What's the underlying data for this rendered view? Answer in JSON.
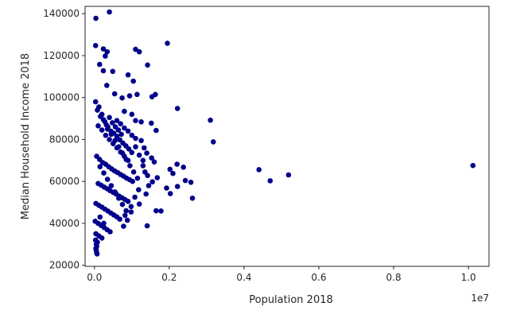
{
  "chart_data": {
    "type": "scatter",
    "xlabel": "Population 2018",
    "ylabel": "Median Household Income 2018",
    "x_offset_text": "1e7",
    "xlim": [
      -0.025,
      1.055
    ],
    "ylim": [
      19500,
      143500
    ],
    "x_tick_values": [
      0.0,
      0.2,
      0.4,
      0.6,
      0.8,
      1.0
    ],
    "x_tick_labels": [
      "0.0",
      "0.2",
      "0.4",
      "0.6",
      "0.8",
      "1.0"
    ],
    "y_tick_values": [
      20000,
      40000,
      60000,
      80000,
      100000,
      120000,
      140000
    ],
    "y_tick_labels": [
      "20000",
      "40000",
      "60000",
      "80000",
      "100000",
      "120000",
      "140000"
    ],
    "grid": false,
    "marker_color": "#00008b",
    "points": [
      [
        0.004,
        137800
      ],
      [
        0.04,
        140800
      ],
      [
        0.003,
        124800
      ],
      [
        0.024,
        123200
      ],
      [
        0.034,
        121800
      ],
      [
        0.029,
        119800
      ],
      [
        0.014,
        115800
      ],
      [
        0.024,
        112800
      ],
      [
        0.049,
        112500
      ],
      [
        0.11,
        123000
      ],
      [
        0.12,
        121800
      ],
      [
        0.142,
        115500
      ],
      [
        0.195,
        125900
      ],
      [
        0.09,
        110800
      ],
      [
        0.104,
        107800
      ],
      [
        0.033,
        105800
      ],
      [
        0.054,
        101800
      ],
      [
        0.074,
        99800
      ],
      [
        0.094,
        100800
      ],
      [
        0.114,
        101500
      ],
      [
        0.154,
        100400
      ],
      [
        0.163,
        101500
      ],
      [
        0.08,
        93400
      ],
      [
        0.1,
        92000
      ],
      [
        0.11,
        89000
      ],
      [
        0.125,
        88400
      ],
      [
        0.152,
        87800
      ],
      [
        0.165,
        84300
      ],
      [
        0.222,
        94800
      ],
      [
        0.31,
        89200
      ],
      [
        0.318,
        78900
      ],
      [
        0.11,
        80500
      ],
      [
        0.125,
        79500
      ],
      [
        0.133,
        76000
      ],
      [
        0.14,
        73500
      ],
      [
        0.153,
        71200
      ],
      [
        0.13,
        67500
      ],
      [
        0.142,
        62800
      ],
      [
        0.155,
        59800
      ],
      [
        0.16,
        69300
      ],
      [
        0.168,
        61800
      ],
      [
        0.202,
        65800
      ],
      [
        0.221,
        68200
      ],
      [
        0.238,
        66800
      ],
      [
        0.243,
        60400
      ],
      [
        0.258,
        59600
      ],
      [
        0.262,
        52000
      ],
      [
        0.21,
        63800
      ],
      [
        0.193,
        56800
      ],
      [
        0.203,
        54200
      ],
      [
        0.222,
        57600
      ],
      [
        0.44,
        65600
      ],
      [
        0.47,
        60300
      ],
      [
        0.519,
        63100
      ],
      [
        1.012,
        67600
      ],
      [
        0.165,
        46000
      ],
      [
        0.178,
        45900
      ],
      [
        0.141,
        38800
      ],
      [
        0.078,
        38600
      ],
      [
        0.098,
        45400
      ],
      [
        0.082,
        43800
      ],
      [
        0.12,
        49200
      ],
      [
        0.003,
        98000
      ],
      [
        0.012,
        95500
      ],
      [
        0.02,
        92000
      ],
      [
        0.028,
        88500
      ],
      [
        0.036,
        86000
      ],
      [
        0.044,
        84000
      ],
      [
        0.052,
        83000
      ],
      [
        0.06,
        81500
      ],
      [
        0.068,
        79800
      ],
      [
        0.076,
        78300
      ],
      [
        0.084,
        77000
      ],
      [
        0.092,
        75500
      ],
      [
        0.1,
        73800
      ],
      [
        0.006,
        72000
      ],
      [
        0.014,
        70500
      ],
      [
        0.022,
        69000
      ],
      [
        0.03,
        68200
      ],
      [
        0.038,
        67000
      ],
      [
        0.046,
        66000
      ],
      [
        0.054,
        65000
      ],
      [
        0.062,
        64200
      ],
      [
        0.07,
        63300
      ],
      [
        0.078,
        62500
      ],
      [
        0.086,
        61600
      ],
      [
        0.094,
        60800
      ],
      [
        0.102,
        60000
      ],
      [
        0.01,
        59000
      ],
      [
        0.018,
        58200
      ],
      [
        0.026,
        57300
      ],
      [
        0.034,
        56500
      ],
      [
        0.042,
        55600
      ],
      [
        0.05,
        54800
      ],
      [
        0.058,
        54000
      ],
      [
        0.066,
        53000
      ],
      [
        0.074,
        52200
      ],
      [
        0.082,
        51300
      ],
      [
        0.09,
        50500
      ],
      [
        0.004,
        49500
      ],
      [
        0.012,
        48600
      ],
      [
        0.02,
        47700
      ],
      [
        0.028,
        46800
      ],
      [
        0.036,
        45900
      ],
      [
        0.044,
        44900
      ],
      [
        0.052,
        44000
      ],
      [
        0.06,
        43100
      ],
      [
        0.068,
        42000
      ],
      [
        0.002,
        41000
      ],
      [
        0.01,
        40000
      ],
      [
        0.018,
        39000
      ],
      [
        0.026,
        38000
      ],
      [
        0.034,
        37000
      ],
      [
        0.042,
        36000
      ],
      [
        0.004,
        35000
      ],
      [
        0.012,
        34000
      ],
      [
        0.02,
        33000
      ],
      [
        0.003,
        32000
      ],
      [
        0.008,
        31000
      ],
      [
        0.005,
        30000
      ],
      [
        0.006,
        29000
      ],
      [
        0.004,
        28000
      ],
      [
        0.005,
        27000
      ],
      [
        0.006,
        26000
      ],
      [
        0.007,
        25400
      ],
      [
        0.01,
        86500
      ],
      [
        0.02,
        84500
      ],
      [
        0.03,
        82000
      ],
      [
        0.04,
        80000
      ],
      [
        0.05,
        78000
      ],
      [
        0.06,
        76000
      ],
      [
        0.07,
        74000
      ],
      [
        0.08,
        72000
      ],
      [
        0.09,
        70000
      ],
      [
        0.015,
        67000
      ],
      [
        0.025,
        64000
      ],
      [
        0.035,
        61000
      ],
      [
        0.045,
        58000
      ],
      [
        0.055,
        55000
      ],
      [
        0.065,
        52000
      ],
      [
        0.075,
        49000
      ],
      [
        0.085,
        46000
      ],
      [
        0.015,
        43000
      ],
      [
        0.025,
        40000
      ],
      [
        0.035,
        85000
      ],
      [
        0.045,
        82500
      ],
      [
        0.055,
        79500
      ],
      [
        0.065,
        76500
      ],
      [
        0.075,
        73500
      ],
      [
        0.085,
        70500
      ],
      [
        0.095,
        67500
      ],
      [
        0.105,
        64500
      ],
      [
        0.115,
        61500
      ],
      [
        0.008,
        94000
      ],
      [
        0.016,
        91000
      ],
      [
        0.024,
        89500
      ],
      [
        0.032,
        87000
      ],
      [
        0.04,
        90500
      ],
      [
        0.048,
        88000
      ],
      [
        0.056,
        86000
      ],
      [
        0.064,
        84500
      ],
      [
        0.072,
        82500
      ],
      [
        0.06,
        89000
      ],
      [
        0.07,
        87500
      ],
      [
        0.08,
        85500
      ],
      [
        0.09,
        84000
      ],
      [
        0.1,
        82000
      ],
      [
        0.11,
        76500
      ],
      [
        0.12,
        72500
      ],
      [
        0.13,
        70000
      ],
      [
        0.135,
        64500
      ],
      [
        0.145,
        58000
      ],
      [
        0.138,
        54000
      ],
      [
        0.118,
        56000
      ],
      [
        0.108,
        52500
      ],
      [
        0.098,
        48000
      ],
      [
        0.088,
        41500
      ]
    ]
  }
}
